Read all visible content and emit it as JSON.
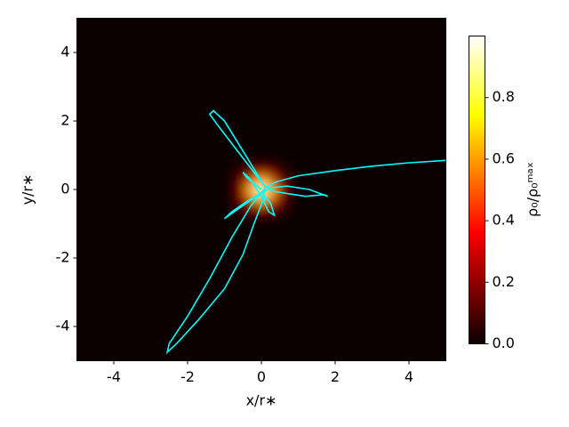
{
  "chart_data": {
    "type": "heatmap",
    "xlabel": "x/r∗",
    "ylabel": "y/r∗",
    "colorbar_label": "ρ₀/ρ₀ᵐᵃˣ",
    "xlim": [
      -5,
      5
    ],
    "ylim": [
      -5,
      5
    ],
    "xticks": [
      -4,
      -2,
      0,
      2,
      4
    ],
    "yticks": [
      -4,
      -2,
      0,
      2,
      4
    ],
    "colormap": "hot",
    "clim": [
      0,
      1
    ],
    "cticks": [
      {
        "value": 0,
        "label": "0.0"
      },
      0.2,
      0.4,
      0.6,
      0.8
    ],
    "heatmap": {
      "x": [
        -0.75,
        -0.5,
        -0.25,
        0,
        0.25,
        0.5,
        0.75
      ],
      "y": [
        -0.75,
        -0.5,
        -0.25,
        0,
        0.25,
        0.5,
        0.75
      ],
      "z": [
        [
          0.01,
          0.03,
          0.04,
          0.04,
          0.04,
          0.03,
          0.01
        ],
        [
          0.03,
          0.06,
          0.18,
          0.25,
          0.18,
          0.06,
          0.03
        ],
        [
          0.04,
          0.18,
          0.5,
          0.71,
          0.5,
          0.18,
          0.04
        ],
        [
          0.04,
          0.25,
          0.71,
          1,
          0.71,
          0.25,
          0.04
        ],
        [
          0.04,
          0.18,
          0.5,
          0.71,
          0.5,
          0.18,
          0.04
        ],
        [
          0.03,
          0.06,
          0.18,
          0.25,
          0.18,
          0.06,
          0.03
        ],
        [
          0.01,
          0.03,
          0.04,
          0.04,
          0.04,
          0.03,
          0.01
        ]
      ]
    },
    "series": [
      {
        "color": "#00ffff",
        "x": [
          5,
          4,
          3,
          2,
          1,
          0.4,
          0.1,
          -0.3,
          -0.8,
          -1.4,
          -2.0,
          -2.5,
          -2.55,
          -2.3,
          -1.7,
          -1.0,
          -0.5,
          -0.2,
          0.05,
          0.1,
          -0.2,
          -0.7,
          -1.2,
          -1.4,
          -1.3,
          -1.0,
          -0.6,
          -0.2,
          0.05,
          0.3,
          0.7,
          1.2,
          1.7,
          1.8,
          1.3,
          0.7,
          0.25,
          0,
          -0.4,
          -0.8,
          -1.0,
          -0.8,
          -0.4,
          0,
          0.25,
          0.35,
          0.2,
          0.0,
          -0.3,
          -0.5,
          -0.4,
          0
        ],
        "y": [
          0.85,
          0.78,
          0.68,
          0.55,
          0.4,
          0.22,
          0.05,
          -0.5,
          -1.4,
          -2.6,
          -3.7,
          -4.5,
          -4.75,
          -4.5,
          -3.8,
          -2.9,
          -1.9,
          -1.0,
          -0.3,
          0.1,
          0.5,
          1.2,
          1.9,
          2.2,
          2.3,
          2.0,
          1.3,
          0.6,
          0.15,
          -0.05,
          -0.12,
          -0.2,
          -0.15,
          -0.2,
          0.0,
          0.1,
          0.05,
          -0.1,
          -0.4,
          -0.7,
          -0.85,
          -0.65,
          -0.35,
          -0.1,
          -0.4,
          -0.75,
          -0.65,
          -0.2,
          0.3,
          0.5,
          0.35,
          0
        ]
      }
    ]
  }
}
